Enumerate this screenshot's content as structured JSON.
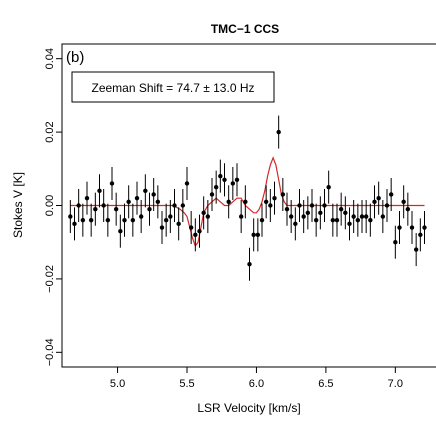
{
  "chart_data": {
    "type": "scatter",
    "title": "TMC−1 CCS",
    "panel_label": "(b)",
    "annotation": "Zeeman Shift =  74.7 ± 13.0 Hz",
    "xlabel": "LSR Velocity [km/s]",
    "ylabel": "Stokes V [K]",
    "xlim": [
      4.6,
      7.3
    ],
    "ylim": [
      -0.044,
      0.044
    ],
    "xticks": [
      5.0,
      5.5,
      6.0,
      6.5,
      7.0
    ],
    "xtick_labels": [
      "5.0",
      "5.5",
      "6.0",
      "6.5",
      "7.0"
    ],
    "yticks": [
      -0.04,
      -0.02,
      0.0,
      0.02,
      0.04
    ],
    "ytick_labels": [
      "−0.04",
      "−0.02",
      "0.00",
      "0.02",
      "0.04"
    ],
    "grid": false,
    "colors": {
      "points": "#000000",
      "fit": "#d62728",
      "axes": "#000000"
    },
    "series": [
      {
        "kind": "points-with-errorbars",
        "x": [
          4.66,
          4.69,
          4.72,
          4.75,
          4.78,
          4.81,
          4.84,
          4.87,
          4.9,
          4.93,
          4.96,
          4.99,
          5.02,
          5.05,
          5.08,
          5.11,
          5.14,
          5.17,
          5.2,
          5.23,
          5.26,
          5.29,
          5.32,
          5.35,
          5.38,
          5.41,
          5.44,
          5.47,
          5.5,
          5.53,
          5.56,
          5.59,
          5.62,
          5.65,
          5.68,
          5.71,
          5.74,
          5.77,
          5.8,
          5.83,
          5.86,
          5.89,
          5.92,
          5.95,
          5.98,
          6.01,
          6.04,
          6.07,
          6.1,
          6.13,
          6.16,
          6.19,
          6.22,
          6.25,
          6.28,
          6.31,
          6.34,
          6.37,
          6.4,
          6.43,
          6.46,
          6.49,
          6.52,
          6.55,
          6.58,
          6.61,
          6.64,
          6.67,
          6.7,
          6.73,
          6.76,
          6.79,
          6.82,
          6.85,
          6.88,
          6.91,
          6.94,
          6.97,
          7.0,
          7.03,
          7.06,
          7.09,
          7.12,
          7.15,
          7.18,
          7.21
        ],
        "y": [
          -0.003,
          -0.005,
          0.0,
          -0.004,
          0.002,
          -0.004,
          -0.001,
          0.004,
          0.0,
          -0.004,
          0.006,
          -0.001,
          -0.007,
          -0.004,
          0.001,
          -0.004,
          0.002,
          -0.003,
          0.004,
          -0.001,
          0.003,
          0.001,
          -0.006,
          -0.004,
          -0.003,
          0.0,
          -0.005,
          0.0,
          0.006,
          -0.006,
          -0.008,
          -0.007,
          -0.002,
          -0.003,
          0.003,
          0.005,
          0.008,
          0.007,
          0.001,
          0.006,
          0.007,
          -0.003,
          0.001,
          -0.016,
          -0.008,
          -0.008,
          -0.004,
          0.001,
          0.0,
          0.002,
          0.02,
          0.003,
          -0.001,
          -0.003,
          -0.005,
          0.0,
          -0.003,
          -0.002,
          0.0,
          -0.004,
          -0.002,
          0.0,
          0.005,
          -0.004,
          -0.004,
          -0.001,
          -0.002,
          -0.005,
          -0.003,
          -0.004,
          -0.003,
          -0.003,
          -0.004,
          0.001,
          0.002,
          -0.003,
          0.0,
          0.003,
          -0.01,
          -0.006,
          0.001,
          -0.001,
          -0.006,
          -0.012,
          -0.008,
          -0.006
        ],
        "yerr": 0.0045
      },
      {
        "kind": "fit-line",
        "x": [
          4.66,
          5.3,
          5.4,
          5.45,
          5.48,
          5.5,
          5.52,
          5.54,
          5.56,
          5.58,
          5.6,
          5.62,
          5.65,
          5.68,
          5.71,
          5.74,
          5.77,
          5.8,
          5.83,
          5.86,
          5.89,
          5.92,
          5.95,
          5.98,
          6.0,
          6.02,
          6.04,
          6.06,
          6.08,
          6.1,
          6.12,
          6.14,
          6.16,
          6.18,
          6.2,
          6.22,
          6.25,
          6.3,
          6.4,
          7.21
        ],
        "y": [
          0.0,
          0.0,
          0.0,
          -0.001,
          -0.002,
          -0.003,
          -0.006,
          -0.009,
          -0.011,
          -0.01,
          -0.006,
          -0.002,
          0.0,
          0.001,
          0.002,
          0.001,
          0.0,
          0.0,
          0.001,
          0.002,
          0.002,
          0.0,
          -0.001,
          -0.002,
          -0.002,
          -0.001,
          0.001,
          0.004,
          0.008,
          0.011,
          0.013,
          0.011,
          0.007,
          0.003,
          0.001,
          0.0,
          0.0,
          0.0,
          0.0,
          0.0
        ]
      }
    ]
  }
}
